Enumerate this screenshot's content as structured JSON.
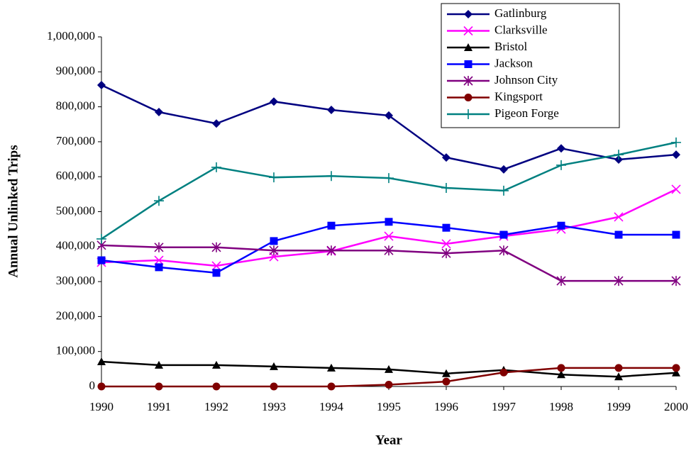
{
  "chart_data": {
    "type": "line",
    "x_label": "Year",
    "y_label": "Annual Unlinked Trips",
    "x": [
      1990,
      1991,
      1992,
      1993,
      1994,
      1995,
      1996,
      1997,
      1998,
      1999,
      2000
    ],
    "xlim": [
      1990,
      2000
    ],
    "xticks": [
      1990,
      1991,
      1992,
      1993,
      1994,
      1995,
      1996,
      1997,
      1998,
      1999,
      2000
    ],
    "ylim": [
      0,
      1000000
    ],
    "yticks": [
      0,
      {
        "value": 100000,
        "label": "100,000"
      },
      {
        "value": 200000,
        "label": "200,000"
      },
      {
        "value": 300000,
        "label": "300,000"
      },
      {
        "value": 400000,
        "label": "400,000"
      },
      {
        "value": 500000,
        "label": "500,000"
      },
      {
        "value": 600000,
        "label": "600,000"
      },
      {
        "value": 700000,
        "label": "700,000"
      },
      {
        "value": 800000,
        "label": "800,000"
      },
      {
        "value": 900000,
        "label": "900,000"
      },
      {
        "value": 1000000,
        "label": "1,000,000"
      }
    ],
    "grid": false,
    "legend": "upper right",
    "series": [
      {
        "name": "Gatlinburg",
        "color": "#000080",
        "marker": "diamond",
        "values": [
          862000,
          785000,
          752000,
          815000,
          791000,
          775000,
          655000,
          621000,
          681000,
          649000,
          663000
        ]
      },
      {
        "name": "Clarksville",
        "color": "#ff00ff",
        "marker": "x",
        "values": [
          355000,
          361000,
          345000,
          371000,
          387000,
          430000,
          408000,
          430000,
          450000,
          485000,
          564000
        ]
      },
      {
        "name": "Bristol",
        "color": "#000000",
        "marker": "triangle",
        "values": [
          71000,
          61000,
          61000,
          57000,
          53000,
          49000,
          37000,
          47000,
          34000,
          28000,
          39000
        ]
      },
      {
        "name": "Jackson",
        "color": "#0000ff",
        "marker": "square",
        "values": [
          361000,
          341000,
          325000,
          416000,
          460000,
          471000,
          454000,
          434000,
          460000,
          434000,
          434000
        ]
      },
      {
        "name": "Johnson City",
        "color": "#800080",
        "marker": "asterisk",
        "values": [
          404000,
          398000,
          398000,
          389000,
          389000,
          389000,
          381000,
          389000,
          302000,
          302000,
          302000
        ]
      },
      {
        "name": "Kingsport",
        "color": "#800000",
        "marker": "circle",
        "values": [
          0,
          0,
          0,
          0,
          0,
          5000,
          14000,
          40000,
          53000,
          53000,
          53000
        ]
      },
      {
        "name": "Pigeon Forge",
        "color": "#008080",
        "marker": "plus",
        "values": [
          422000,
          531000,
          627000,
          598000,
          602000,
          596000,
          568000,
          560000,
          633000,
          663000,
          698000
        ]
      }
    ]
  }
}
